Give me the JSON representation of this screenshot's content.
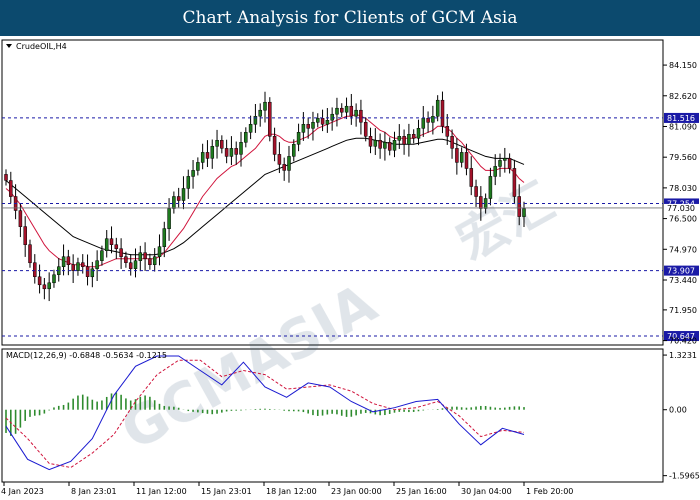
{
  "header": {
    "title": "Chart Analysis for Clients of GCM Asia"
  },
  "watermark": {
    "text": "GCMASIA",
    "chinese": "宏汇"
  },
  "chart_data": [
    {
      "type": "candlestick",
      "symbol_label": "CrudeOIL,H4",
      "ylim": [
        70.2,
        85.4
      ],
      "y_ticks": [
        "84.150",
        "82.620",
        "81.090",
        "79.560",
        "78.030",
        "76.500",
        "74.970",
        "73.440",
        "71.950",
        "70.420"
      ],
      "y_tick_values": [
        84.15,
        82.62,
        81.09,
        79.56,
        78.03,
        76.5,
        74.97,
        73.44,
        71.95,
        70.42
      ],
      "current_price": "77.030",
      "current_price_value": 77.03,
      "levels": [
        {
          "label": "81.516",
          "value": 81.516
        },
        {
          "label": "77.254",
          "value": 77.254
        },
        {
          "label": "73.907",
          "value": 73.907
        },
        {
          "label": "70.647",
          "value": 70.647
        }
      ],
      "x_ticks": [
        "4 Jan 2023",
        "8 Jan 23:01",
        "11 Jan 12:00",
        "15 Jan 23:01",
        "18 Jan 12:00",
        "23 Jan 00:00",
        "25 Jan 16:00",
        "30 Jan 04:00",
        "1 Feb 20:00"
      ],
      "candle_closes": [
        78.4,
        77.6,
        76.9,
        76.1,
        75.2,
        74.3,
        73.6,
        73.2,
        73.0,
        73.3,
        73.7,
        74.1,
        74.6,
        74.2,
        73.9,
        74.3,
        74.1,
        73.6,
        74.0,
        74.4,
        74.9,
        75.5,
        75.2,
        75.0,
        74.6,
        74.3,
        74.0,
        74.4,
        74.8,
        74.5,
        74.2,
        74.6,
        75.1,
        76.0,
        77.0,
        77.6,
        77.4,
        78.0,
        78.6,
        78.9,
        79.3,
        79.8,
        79.5,
        80.1,
        80.4,
        80.0,
        79.6,
        80.0,
        79.7,
        80.3,
        80.8,
        81.2,
        81.6,
        81.9,
        82.3,
        80.6,
        79.7,
        79.2,
        78.9,
        79.6,
        80.2,
        80.8,
        81.2,
        81.0,
        81.3,
        81.5,
        81.2,
        81.4,
        81.7,
        82.0,
        81.8,
        82.1,
        81.6,
        81.9,
        81.3,
        80.6,
        80.1,
        80.4,
        80.0,
        80.3,
        79.9,
        80.4,
        80.6,
        80.2,
        80.7,
        80.5,
        81.0,
        81.5,
        81.3,
        81.6,
        82.4,
        81.1,
        80.6,
        80.0,
        79.3,
        79.8,
        79.0,
        78.1,
        77.6,
        77.0,
        77.5,
        78.6,
        79.1,
        79.4,
        79.5,
        79.0,
        77.6,
        76.6,
        77.0
      ],
      "ma_fast": [
        78.0,
        77.8,
        77.5,
        77.2,
        76.8,
        76.4,
        76.0,
        75.6,
        75.2,
        74.9,
        74.7,
        74.5,
        74.4,
        74.3,
        74.2,
        74.2,
        74.2,
        74.1,
        74.1,
        74.1,
        74.2,
        74.3,
        74.4,
        74.5,
        74.5,
        74.5,
        74.5,
        74.5,
        74.5,
        74.5,
        74.5,
        74.5,
        74.6,
        74.8,
        75.1,
        75.4,
        75.7,
        76.0,
        76.4,
        76.8,
        77.2,
        77.6,
        77.9,
        78.2,
        78.5,
        78.7,
        78.9,
        79.1,
        79.2,
        79.4,
        79.6,
        79.8,
        80.0,
        80.3,
        80.6,
        80.7,
        80.7,
        80.6,
        80.4,
        80.3,
        80.3,
        80.4,
        80.5,
        80.6,
        80.8,
        81.0,
        81.1,
        81.2,
        81.3,
        81.4,
        81.5,
        81.6,
        81.6,
        81.7,
        81.6,
        81.5,
        81.3,
        81.1,
        80.9,
        80.8,
        80.6,
        80.5,
        80.5,
        80.5,
        80.5,
        80.5,
        80.6,
        80.7,
        80.8,
        80.9,
        81.1,
        81.1,
        81.0,
        80.8,
        80.5,
        80.3,
        80.0,
        79.7,
        79.4,
        79.1,
        78.9,
        78.9,
        78.9,
        79.0,
        79.0,
        79.0,
        78.8,
        78.5,
        78.3
      ],
      "ma_slow": [
        78.4,
        78.2,
        78.0,
        77.8,
        77.6,
        77.4,
        77.2,
        77.0,
        76.8,
        76.6,
        76.4,
        76.2,
        76.0,
        75.8,
        75.6,
        75.5,
        75.4,
        75.3,
        75.2,
        75.1,
        75.0,
        74.95,
        74.9,
        74.85,
        74.8,
        74.75,
        74.7,
        74.7,
        74.7,
        74.7,
        74.7,
        74.7,
        74.75,
        74.8,
        74.9,
        75.0,
        75.15,
        75.3,
        75.5,
        75.7,
        75.9,
        76.1,
        76.3,
        76.5,
        76.7,
        76.9,
        77.1,
        77.3,
        77.5,
        77.7,
        77.9,
        78.1,
        78.3,
        78.5,
        78.7,
        78.8,
        78.9,
        79.0,
        79.1,
        79.2,
        79.3,
        79.4,
        79.5,
        79.6,
        79.7,
        79.8,
        79.9,
        80.0,
        80.1,
        80.2,
        80.3,
        80.4,
        80.45,
        80.5,
        80.5,
        80.5,
        80.45,
        80.4,
        80.35,
        80.3,
        80.25,
        80.2,
        80.2,
        80.2,
        80.2,
        80.2,
        80.25,
        80.3,
        80.35,
        80.4,
        80.45,
        80.45,
        80.4,
        80.3,
        80.2,
        80.1,
        80.0,
        79.9,
        79.8,
        79.7,
        79.6,
        79.55,
        79.5,
        79.5,
        79.5,
        79.5,
        79.4,
        79.3,
        79.2
      ]
    },
    {
      "type": "macd",
      "label": "MACD(12,26,9) -0.6848 -0.5634 -0.1215",
      "ylim": [
        -1.75,
        1.47
      ],
      "y_ticks": [
        "1.3231",
        "0.00",
        "-1.5965"
      ],
      "y_tick_values": [
        1.3231,
        0.0,
        -1.5965
      ],
      "histogram_summary": [
        -0.75,
        0.35,
        0.45,
        -0.15,
        0.05,
        -0.2,
        -0.12,
        0.1,
        0.08
      ],
      "macd_summary": [
        -0.4,
        -1.2,
        -1.45,
        -1.25,
        -0.7,
        0.35,
        1.05,
        1.3,
        1.3,
        0.95,
        0.6,
        1.15,
        0.55,
        0.3,
        0.65,
        0.55,
        0.2,
        -0.05,
        0.05,
        0.2,
        0.25,
        -0.35,
        -0.85,
        -0.45,
        -0.6
      ],
      "signal_summary": [
        -0.2,
        -0.7,
        -1.3,
        -1.4,
        -1.05,
        -0.6,
        0.2,
        0.85,
        1.2,
        1.2,
        0.8,
        0.95,
        0.85,
        0.5,
        0.55,
        0.6,
        0.45,
        0.15,
        0.0,
        0.05,
        0.2,
        -0.15,
        -0.65,
        -0.5,
        -0.55
      ]
    }
  ]
}
